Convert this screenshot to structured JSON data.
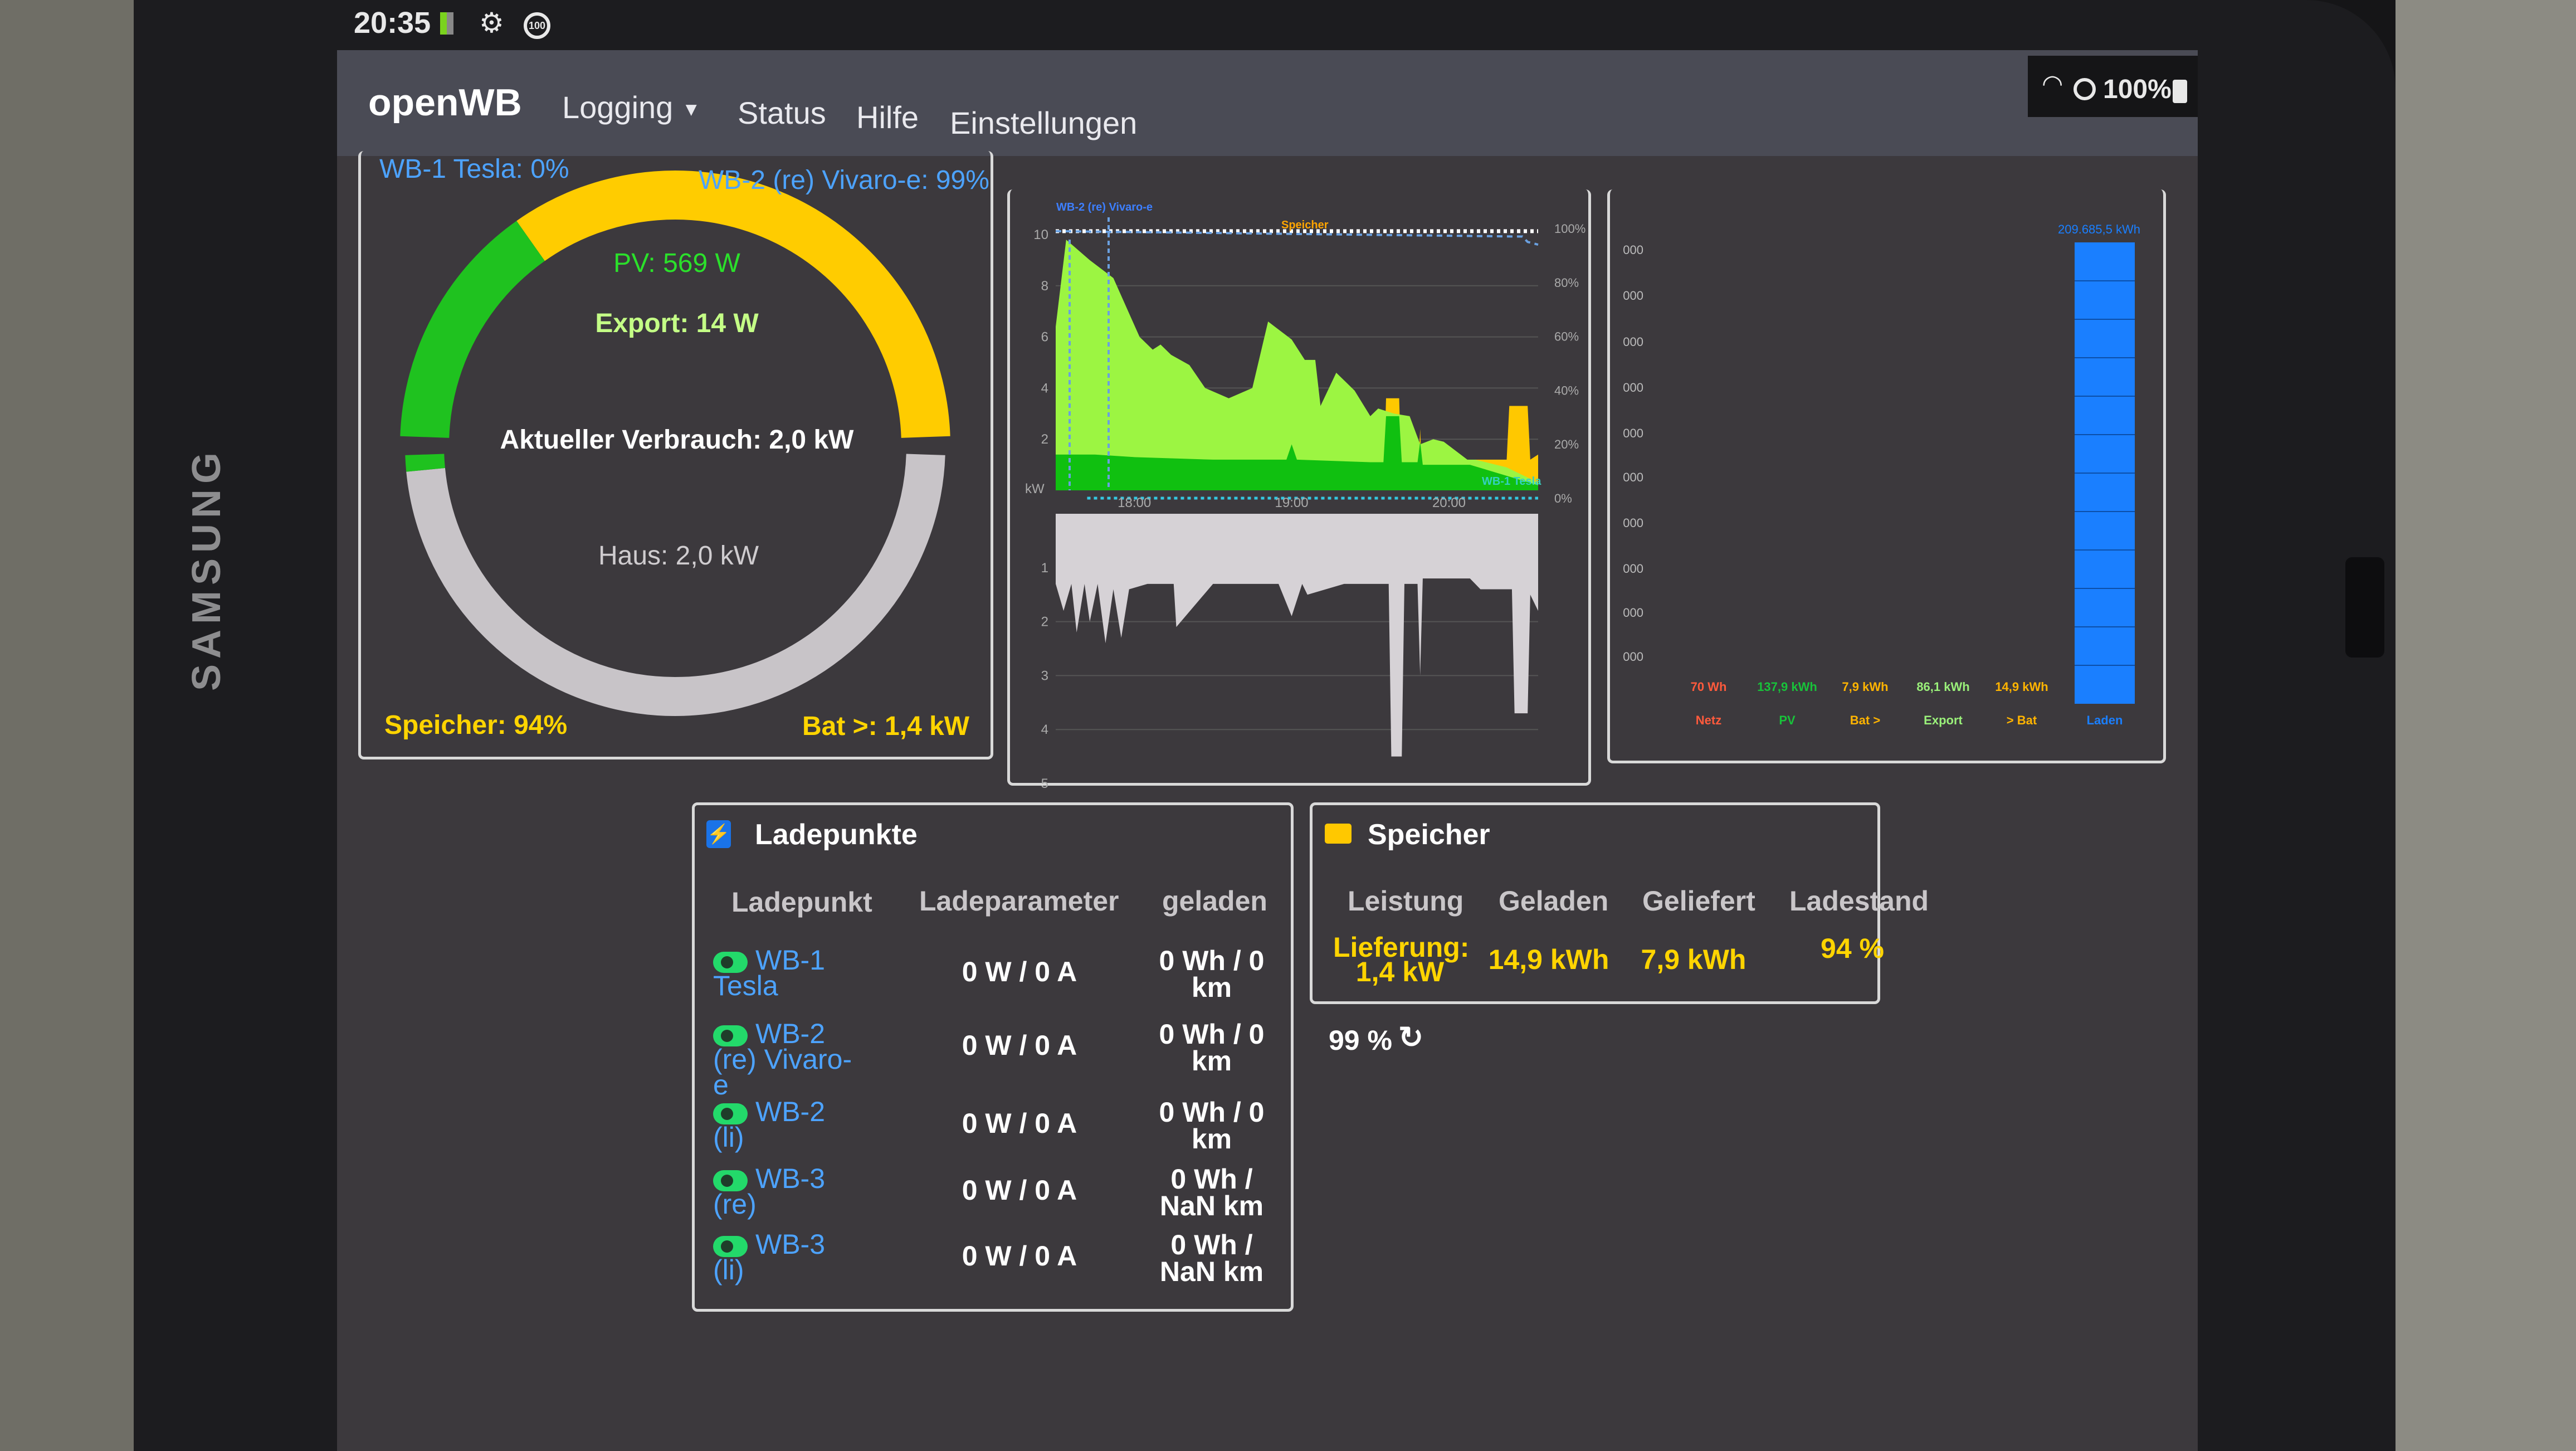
{
  "device": {
    "brand": "SAMSUNG"
  },
  "statusbar": {
    "time": "20:35",
    "battery": "100%",
    "icons": [
      "data-saver-icon",
      "gear-icon",
      "badge-100-icon",
      "wifi-icon",
      "do-not-disturb-icon",
      "battery-icon"
    ],
    "badge": "100"
  },
  "nav": {
    "brand": "openWB",
    "items": [
      {
        "label": "Logging",
        "dropdown": true
      },
      {
        "label": "Status"
      },
      {
        "label": "Hilfe"
      },
      {
        "label": "Einstellungen"
      }
    ]
  },
  "gauge": {
    "wb1_soc": "WB-1 Tesla: 0%",
    "wb2_soc": "WB-2 (re) Vivaro-e: 99%",
    "pv": "PV: 569 W",
    "export": "Export: 14 W",
    "verbrauch": "Aktueller Verbrauch: 2,0 kW",
    "haus": "Haus: 2,0 kW",
    "speicher": "Speicher: 94%",
    "bat": "Bat >: 1,4 kW",
    "top_green_fraction": 0.3,
    "bottom_green_fraction": 0.02,
    "colors": {
      "green": "#1fc21f",
      "yellow": "#ffcc00",
      "grey": "#c8c4c8"
    }
  },
  "chart_data": [
    {
      "type": "area",
      "x_ticks": [
        "18:00",
        "19:00",
        "20:00"
      ],
      "y_ticks_left": [
        "10",
        "8",
        "6",
        "4",
        "2"
      ],
      "y_ticks_right": [
        "100%",
        "80%",
        "60%",
        "40%",
        "20%",
        "0%"
      ],
      "ylabel": "kW",
      "ylim": [
        0,
        10
      ],
      "annotations": [
        "WB-2 (re) Vivaro-e",
        "Speicher",
        "WB-1 Tesla"
      ],
      "series": [
        {
          "key": "pv",
          "color": "#9cf542",
          "x": [
            "17:30",
            "17:34",
            "17:43",
            "17:52",
            "18:02",
            "18:07",
            "18:10",
            "18:14",
            "18:21",
            "18:27",
            "18:36",
            "18:45",
            "18:51",
            "19:00",
            "19:05",
            "19:09",
            "19:11",
            "19:17",
            "19:24",
            "19:30",
            "19:33",
            "19:39",
            "19:45",
            "19:49",
            "19:54",
            "19:58",
            "20:07",
            "20:10",
            "20:22",
            "20:34"
          ],
          "values": [
            6.4,
            9.8,
            9.0,
            8.3,
            6.0,
            5.5,
            5.7,
            5.3,
            4.9,
            4.0,
            3.6,
            4.0,
            6.6,
            5.9,
            5.1,
            5.1,
            3.3,
            4.6,
            3.9,
            2.9,
            3.2,
            3.0,
            2.9,
            1.8,
            2.0,
            1.9,
            1.2,
            1.2,
            0.9,
            0.3
          ]
        },
        {
          "key": "house",
          "color": "#10c010",
          "x": [
            "17:30",
            "17:45",
            "18:00",
            "18:30",
            "18:58",
            "19:00",
            "19:02",
            "19:30",
            "19:35",
            "19:36",
            "19:41",
            "19:42",
            "19:48",
            "19:49",
            "19:50",
            "20:08",
            "20:34"
          ],
          "values": [
            1.4,
            1.4,
            1.3,
            1.2,
            1.2,
            1.8,
            1.2,
            1.1,
            1.1,
            2.9,
            2.9,
            1.1,
            1.1,
            1.9,
            1.0,
            1.0,
            0.2
          ]
        },
        {
          "key": "battery",
          "color": "#ffc800",
          "x": [
            "17:30",
            "19:35",
            "19:36",
            "19:41",
            "19:42",
            "19:48",
            "19:49",
            "19:50",
            "20:08",
            "20:10",
            "20:22",
            "20:23",
            "20:30",
            "20:31",
            "20:34"
          ],
          "values": [
            0,
            0,
            3.6,
            3.6,
            0,
            0,
            2.4,
            0,
            0,
            1.2,
            1.2,
            3.3,
            3.3,
            1.2,
            1.4
          ]
        },
        {
          "key": "soc_wb2",
          "axis": "right",
          "color": "#ffffff",
          "x": [
            "17:30",
            "20:30",
            "20:34"
          ],
          "values": [
            99,
            99,
            99
          ]
        },
        {
          "key": "soc_speicher",
          "axis": "right",
          "color": "#ffffff",
          "x": [
            "17:30",
            "20:28",
            "20:30",
            "20:34"
          ],
          "values": [
            99,
            97,
            95,
            94
          ]
        }
      ]
    },
    {
      "type": "area",
      "y_ticks": [
        "1",
        "2",
        "3",
        "4",
        "5"
      ],
      "ylim": [
        0,
        5
      ],
      "series": [
        {
          "key": "haus",
          "color": "#d6d2d6",
          "x": [
            "17:30",
            "17:33",
            "17:36",
            "17:38",
            "17:41",
            "17:43",
            "17:46",
            "17:49",
            "17:52",
            "17:55",
            "17:58",
            "18:05",
            "18:15",
            "18:16",
            "18:30",
            "18:55",
            "19:00",
            "19:04",
            "19:06",
            "19:20",
            "19:37",
            "19:38",
            "19:42",
            "19:43",
            "19:48",
            "19:49",
            "19:50",
            "20:08",
            "20:12",
            "20:24",
            "20:25",
            "20:30",
            "20:31",
            "20:34"
          ],
          "values": [
            1.3,
            1.8,
            1.3,
            2.2,
            1.3,
            2.0,
            1.3,
            2.4,
            1.4,
            2.3,
            1.4,
            1.3,
            1.3,
            2.1,
            1.3,
            1.3,
            1.9,
            1.3,
            1.5,
            1.3,
            1.3,
            4.5,
            4.5,
            1.3,
            1.3,
            3.0,
            1.2,
            1.2,
            1.4,
            1.4,
            3.7,
            3.7,
            1.5,
            1.8
          ]
        }
      ]
    },
    {
      "type": "bar",
      "y_ticks": [
        "000",
        "000",
        "000",
        "000",
        "000",
        "000",
        "000",
        "000",
        "000",
        "000"
      ],
      "categories": [
        "Netz",
        "PV",
        "Bat >",
        "Export",
        "> Bat",
        "Laden"
      ],
      "value_labels": [
        "70 Wh",
        "137,9 kWh",
        "7,9 kWh",
        "86,1 kWh",
        "14,9 kWh",
        "209.685,5 kWh"
      ],
      "values_kwh": [
        0.07,
        137.9,
        7.9,
        86.1,
        14.9,
        209685.5
      ],
      "colors": [
        "#ff5a3c",
        "#18c23a",
        "#ffb400",
        "#9af07a",
        "#ffb400",
        "#1a7fff"
      ]
    }
  ],
  "ladepunkte": {
    "title": "Ladepunkte",
    "headers": [
      "Ladepunkt",
      "Ladeparameter",
      "geladen"
    ],
    "rows": [
      {
        "name": "WB-1 Tesla",
        "param": "0 W / 0 A",
        "geladen": "0 Wh / 0 km",
        "enabled": true
      },
      {
        "name": "WB-2 (re) Vivaro-e",
        "param": "0 W / 0 A",
        "geladen": "0 Wh / 0 km",
        "enabled": true
      },
      {
        "name": "WB-2 (li)",
        "param": "0 W / 0 A",
        "geladen": "0 Wh / 0 km",
        "enabled": true
      },
      {
        "name": "WB-3 (re)",
        "param": "0 W / 0 A",
        "geladen": "0 Wh / NaN km",
        "enabled": true
      },
      {
        "name": "WB-3 (li)",
        "param": "0 W / 0 A",
        "geladen": "0 Wh / NaN km",
        "enabled": true
      }
    ]
  },
  "speicher": {
    "title": "Speicher",
    "headers": [
      "Leistung",
      "Geladen",
      "Geliefert",
      "Ladestand"
    ],
    "values": [
      "Lieferung: 1,4 kW",
      "14,9 kWh",
      "7,9 kWh",
      "94 %"
    ]
  },
  "soc_refresh": {
    "value": "99 %"
  }
}
